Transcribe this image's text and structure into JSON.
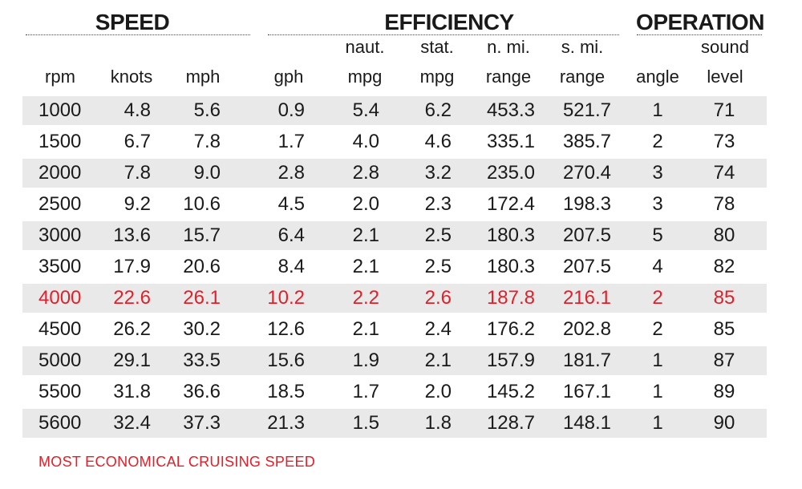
{
  "colors": {
    "highlight": "#e0202a",
    "row_shade": "#e9e9ea",
    "text": "#1a1a1a"
  },
  "groups": {
    "speed": "SPEED",
    "efficiency": "EFFICIENCY",
    "operation": "OPERATION"
  },
  "headers": [
    {
      "top": "",
      "bottom": "rpm"
    },
    {
      "top": "",
      "bottom": "knots"
    },
    {
      "top": "",
      "bottom": "mph"
    },
    {
      "top": "",
      "bottom": "gph"
    },
    {
      "top": "naut.",
      "bottom": "mpg"
    },
    {
      "top": "stat.",
      "bottom": "mpg"
    },
    {
      "top": "n. mi.",
      "bottom": "range"
    },
    {
      "top": "s. mi.",
      "bottom": "range"
    },
    {
      "top": "",
      "bottom": "angle"
    },
    {
      "top": "sound",
      "bottom": "level"
    }
  ],
  "rows": [
    [
      "1000",
      "4.8",
      "5.6",
      "0.9",
      "5.4",
      "6.2",
      "453.3",
      "521.7",
      "1",
      "71"
    ],
    [
      "1500",
      "6.7",
      "7.8",
      "1.7",
      "4.0",
      "4.6",
      "335.1",
      "385.7",
      "2",
      "73"
    ],
    [
      "2000",
      "7.8",
      "9.0",
      "2.8",
      "2.8",
      "3.2",
      "235.0",
      "270.4",
      "3",
      "74"
    ],
    [
      "2500",
      "9.2",
      "10.6",
      "4.5",
      "2.0",
      "2.3",
      "172.4",
      "198.3",
      "3",
      "78"
    ],
    [
      "3000",
      "13.6",
      "15.7",
      "6.4",
      "2.1",
      "2.5",
      "180.3",
      "207.5",
      "5",
      "80"
    ],
    [
      "3500",
      "17.9",
      "20.6",
      "8.4",
      "2.1",
      "2.5",
      "180.3",
      "207.5",
      "4",
      "82"
    ],
    [
      "4000",
      "22.6",
      "26.1",
      "10.2",
      "2.2",
      "2.6",
      "187.8",
      "216.1",
      "2",
      "85"
    ],
    [
      "4500",
      "26.2",
      "30.2",
      "12.6",
      "2.1",
      "2.4",
      "176.2",
      "202.8",
      "2",
      "85"
    ],
    [
      "5000",
      "29.1",
      "33.5",
      "15.6",
      "1.9",
      "2.1",
      "157.9",
      "181.7",
      "1",
      "87"
    ],
    [
      "5500",
      "31.8",
      "36.6",
      "18.5",
      "1.7",
      "2.0",
      "145.2",
      "167.1",
      "1",
      "89"
    ],
    [
      "5600",
      "32.4",
      "37.3",
      "21.3",
      "1.5",
      "1.8",
      "128.7",
      "148.1",
      "1",
      "90"
    ]
  ],
  "highlight_row_index": 6,
  "footnote": "MOST ECONOMICAL CRUISING SPEED"
}
